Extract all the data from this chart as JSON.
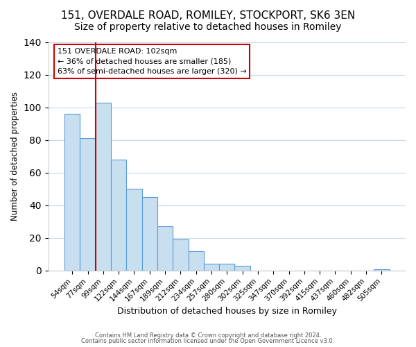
{
  "title": "151, OVERDALE ROAD, ROMILEY, STOCKPORT, SK6 3EN",
  "subtitle": "Size of property relative to detached houses in Romiley",
  "xlabel": "Distribution of detached houses by size in Romiley",
  "ylabel": "Number of detached properties",
  "bar_labels": [
    "54sqm",
    "77sqm",
    "99sqm",
    "122sqm",
    "144sqm",
    "167sqm",
    "189sqm",
    "212sqm",
    "234sqm",
    "257sqm",
    "280sqm",
    "302sqm",
    "325sqm",
    "347sqm",
    "370sqm",
    "392sqm",
    "415sqm",
    "437sqm",
    "460sqm",
    "482sqm",
    "505sqm"
  ],
  "bar_values": [
    96,
    81,
    103,
    68,
    50,
    45,
    27,
    19,
    12,
    4,
    4,
    3,
    0,
    0,
    0,
    0,
    0,
    0,
    0,
    0,
    1
  ],
  "bar_color": "#c8dff0",
  "bar_edge_color": "#5b9bd5",
  "ylim": [
    0,
    140
  ],
  "yticks": [
    0,
    20,
    40,
    60,
    80,
    100,
    120,
    140
  ],
  "vline_x_index": 2,
  "vline_color": "#cc0000",
  "annotation_title": "151 OVERDALE ROAD: 102sqm",
  "annotation_line1": "← 36% of detached houses are smaller (185)",
  "annotation_line2": "63% of semi-detached houses are larger (320) →",
  "annotation_box_color": "#ffffff",
  "annotation_box_edge": "#cc0000",
  "footer_line1": "Contains HM Land Registry data © Crown copyright and database right 2024.",
  "footer_line2": "Contains public sector information licensed under the Open Government Licence v3.0.",
  "background_color": "#ffffff",
  "grid_color": "#c8d8e8",
  "title_fontsize": 11,
  "subtitle_fontsize": 10
}
